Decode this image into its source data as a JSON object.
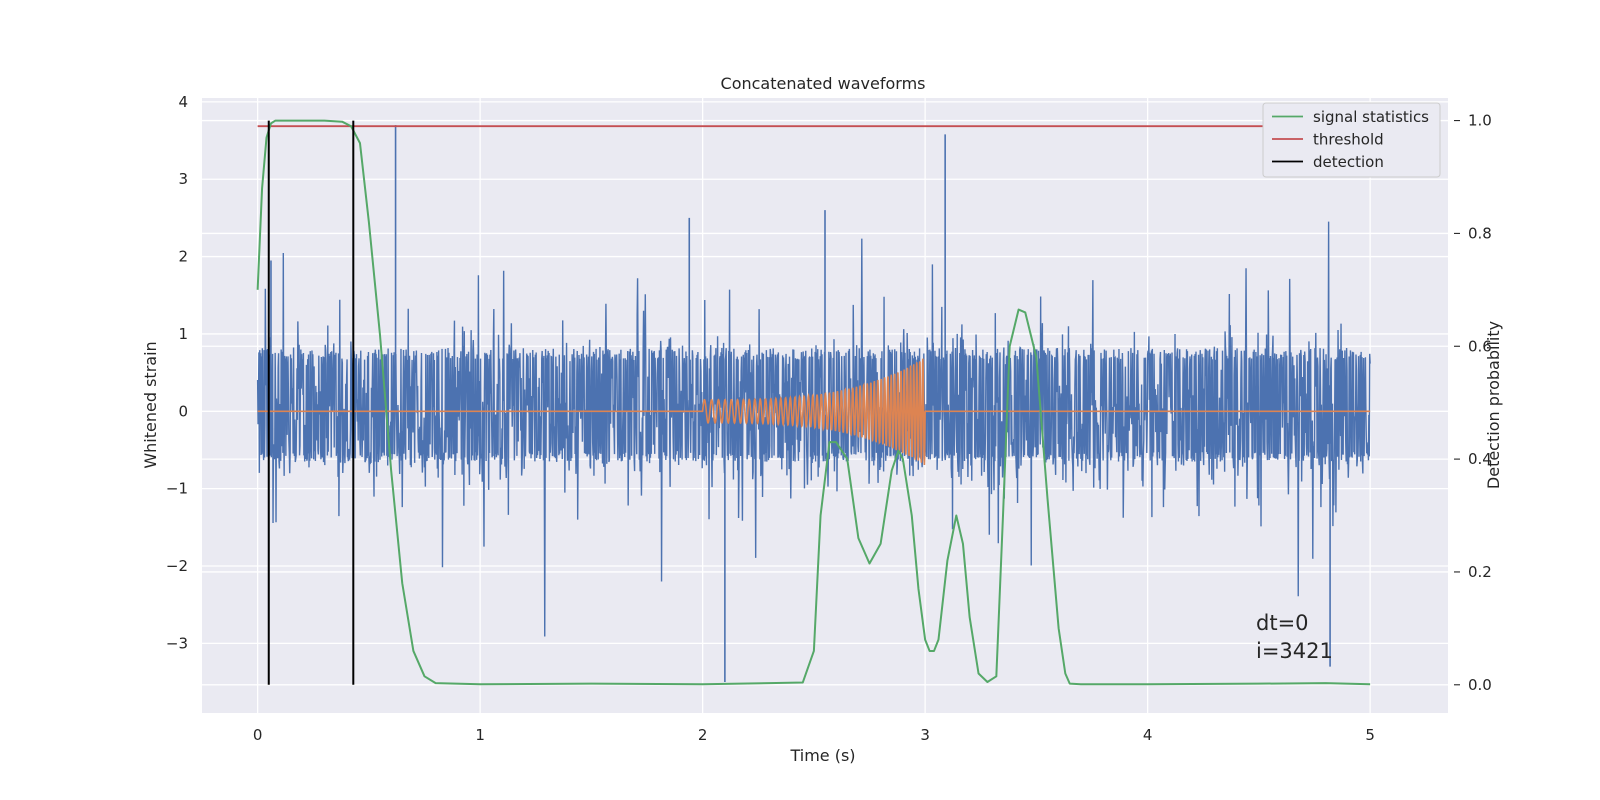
{
  "chart_data": {
    "type": "line",
    "title": "Concatenated waveforms",
    "xlabel": "Time (s)",
    "ylabel": "Whitened strain",
    "ylabel_right": "Detection probability",
    "xlim": [
      -0.25,
      5.35
    ],
    "ylim": [
      -3.9,
      4.05
    ],
    "ylim_right": [
      -0.05,
      1.04
    ],
    "xticks": [
      0,
      1,
      2,
      3,
      4,
      5
    ],
    "yticks": [
      -3,
      -2,
      -1,
      0,
      1,
      2,
      3,
      4
    ],
    "yticks_right": [
      0.0,
      0.2,
      0.4,
      0.6,
      0.8,
      1.0
    ],
    "grid": true,
    "legend_placement": "top-right",
    "colors": {
      "background": "#EAEAF2",
      "grid": "#FFFFFF",
      "strain": "#4C72B0",
      "template": "#DD8452",
      "signal_statistics": "#55A868",
      "threshold": "#C44E52",
      "detection": "#000000"
    },
    "legend": [
      {
        "label": "signal statistics",
        "color": "#55A868"
      },
      {
        "label": "threshold",
        "color": "#C44E52"
      },
      {
        "label": "detection",
        "color": "#000000"
      }
    ],
    "series": [
      {
        "name": "signal statistics",
        "axis": "right",
        "x": [
          0.0,
          0.02,
          0.04,
          0.06,
          0.08,
          0.1,
          0.2,
          0.3,
          0.38,
          0.42,
          0.46,
          0.5,
          0.55,
          0.6,
          0.65,
          0.7,
          0.75,
          0.8,
          1.0,
          1.5,
          2.0,
          2.3,
          2.45,
          2.5,
          2.53,
          2.57,
          2.6,
          2.65,
          2.7,
          2.75,
          2.8,
          2.85,
          2.88,
          2.9,
          2.94,
          2.97,
          3.0,
          3.02,
          3.04,
          3.06,
          3.1,
          3.14,
          3.17,
          3.2,
          3.24,
          3.28,
          3.32,
          3.35,
          3.38,
          3.42,
          3.45,
          3.5,
          3.55,
          3.6,
          3.63,
          3.65,
          3.7,
          4.0,
          4.5,
          4.8,
          5.0
        ],
        "y": [
          0.7,
          0.88,
          0.97,
          0.995,
          1.0,
          1.0,
          1.0,
          1.0,
          0.998,
          0.99,
          0.96,
          0.82,
          0.62,
          0.38,
          0.18,
          0.06,
          0.015,
          0.003,
          0.001,
          0.002,
          0.001,
          0.003,
          0.004,
          0.06,
          0.3,
          0.43,
          0.43,
          0.4,
          0.26,
          0.215,
          0.25,
          0.38,
          0.415,
          0.4,
          0.3,
          0.17,
          0.08,
          0.06,
          0.06,
          0.08,
          0.22,
          0.3,
          0.25,
          0.12,
          0.02,
          0.005,
          0.015,
          0.3,
          0.6,
          0.665,
          0.66,
          0.58,
          0.33,
          0.1,
          0.02,
          0.002,
          0.001,
          0.001,
          0.002,
          0.003,
          0.001
        ]
      },
      {
        "name": "threshold",
        "axis": "right",
        "x": [
          0.0,
          5.0
        ],
        "y": [
          0.99,
          0.99
        ]
      },
      {
        "name": "detection",
        "axis": "right",
        "type": "vlines",
        "x": [
          0.05,
          0.43
        ],
        "y_range": [
          0.0,
          1.0
        ]
      }
    ],
    "waveforms": [
      {
        "role": "whitened strain noise",
        "axis": "left",
        "x_range": [
          0.0,
          5.0
        ],
        "typical_band": [
          -0.62,
          0.78
        ],
        "max_peak": 3.7,
        "min_peak": -3.5
      },
      {
        "role": "injected chirp",
        "axis": "left",
        "flat_value": 0.0,
        "chirp_x_range": [
          2.0,
          3.0
        ],
        "start_amplitude": 0.15,
        "end_amplitude": 0.7
      }
    ],
    "annotations": [
      "dt=0",
      "i=3421"
    ]
  }
}
